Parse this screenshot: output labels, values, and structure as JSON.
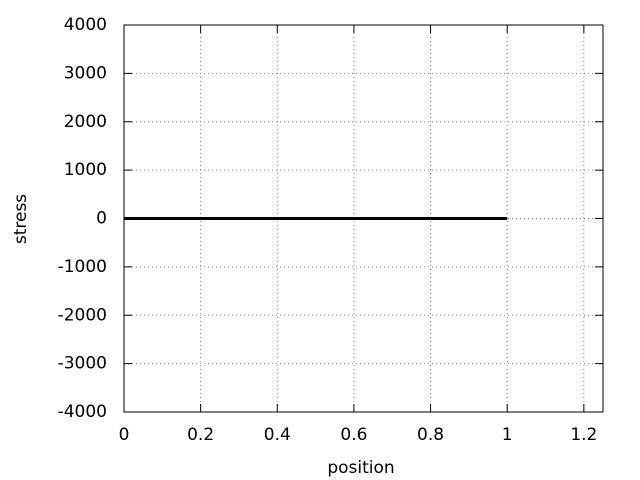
{
  "chart_data": {
    "type": "line",
    "xlabel": "position",
    "ylabel": "stress",
    "x": [
      0,
      1
    ],
    "series": [
      {
        "color": "#000000",
        "values": [
          0,
          0
        ]
      }
    ],
    "xlim": [
      0,
      1.25
    ],
    "xticks": [
      0,
      0.2,
      0.4,
      0.6,
      0.8,
      1,
      1.2
    ],
    "ylim": [
      -4000,
      4000
    ],
    "yticks": [
      -4000,
      -3000,
      -2000,
      -1000,
      0,
      1000,
      2000,
      3000,
      4000
    ],
    "grid": true
  }
}
